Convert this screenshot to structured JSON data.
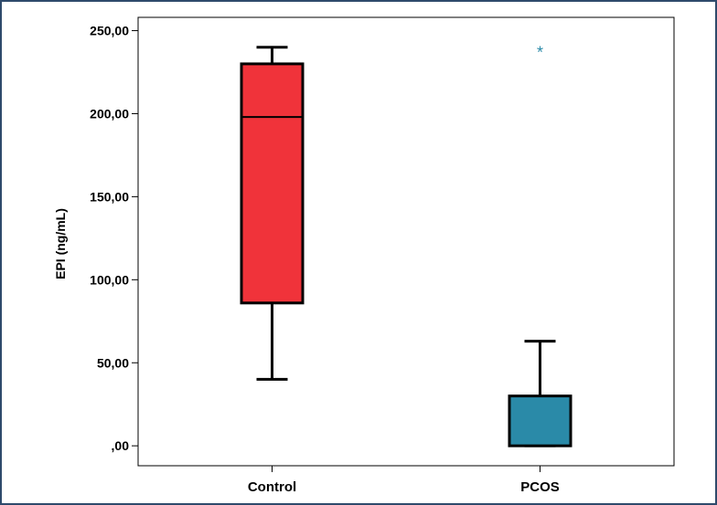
{
  "chart_data": {
    "type": "box",
    "title": "",
    "xlabel": "",
    "ylabel": "EPI (ng/mL)",
    "ylim": [
      -12,
      258
    ],
    "y_ticks": [
      0,
      50,
      100,
      150,
      200,
      250
    ],
    "y_tick_labels": [
      ",00",
      "50,00",
      "100,00",
      "150,00",
      "200,00",
      "250,00"
    ],
    "grid": false,
    "legend": "none",
    "categories": [
      "Control",
      "PCOS"
    ],
    "series": [
      {
        "min": 40,
        "q1": 86,
        "median": 198,
        "q3": 230,
        "max": 240,
        "outliers": [],
        "color": "#f0333a"
      },
      {
        "min": 0,
        "q1": 0,
        "median": 0,
        "q3": 30,
        "max": 63,
        "outliers": [
          238
        ],
        "color": "#2a8aa8"
      }
    ],
    "outlier_marker": "*"
  }
}
